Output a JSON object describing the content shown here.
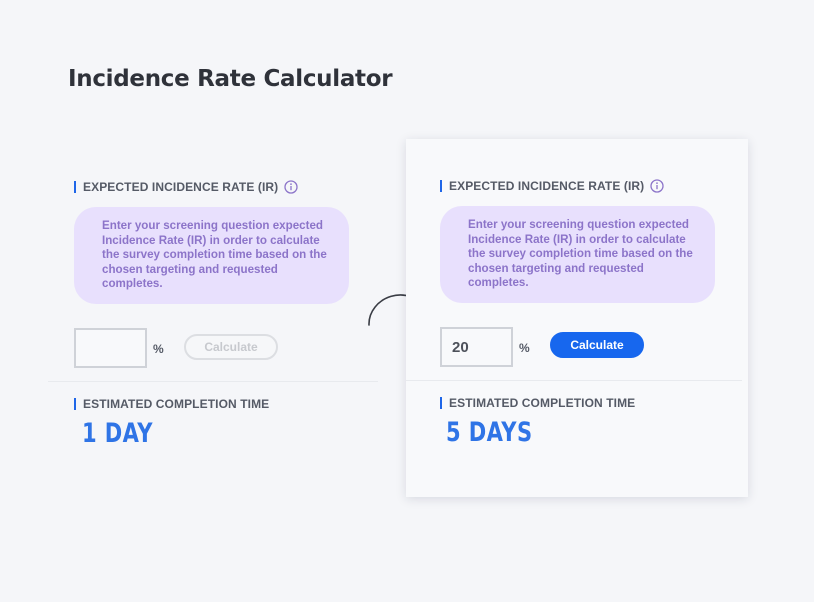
{
  "title": "Incidence Rate Calculator",
  "left": {
    "ir_label": "EXPECTED INCIDENCE RATE (IR)",
    "info_text": "Enter your screening question expected Incidence Rate (IR) in order to calculate the survey completion time based on the chosen targeting and requested completes.",
    "input_value": "",
    "percent": "%",
    "calculate_label": "Calculate",
    "estimate_label": "ESTIMATED COMPLETION TIME",
    "estimate_value": "1 DAY"
  },
  "right": {
    "ir_label": "EXPECTED INCIDENCE RATE (IR)",
    "info_text": "Enter your screening question expected Incidence Rate (IR) in order to calculate the survey completion time based on the chosen targeting and requested completes.",
    "input_value": "20",
    "percent": "%",
    "calculate_label": "Calculate",
    "estimate_label": "ESTIMATED COMPLETION TIME",
    "estimate_value": "5 DAYS"
  },
  "colors": {
    "accent": "#1767ee",
    "result": "#2f74e6",
    "info_bg": "#e8e0fd",
    "info_text": "#8c74c9"
  },
  "icons": [
    "info-icon",
    "curved-arrow-icon"
  ]
}
